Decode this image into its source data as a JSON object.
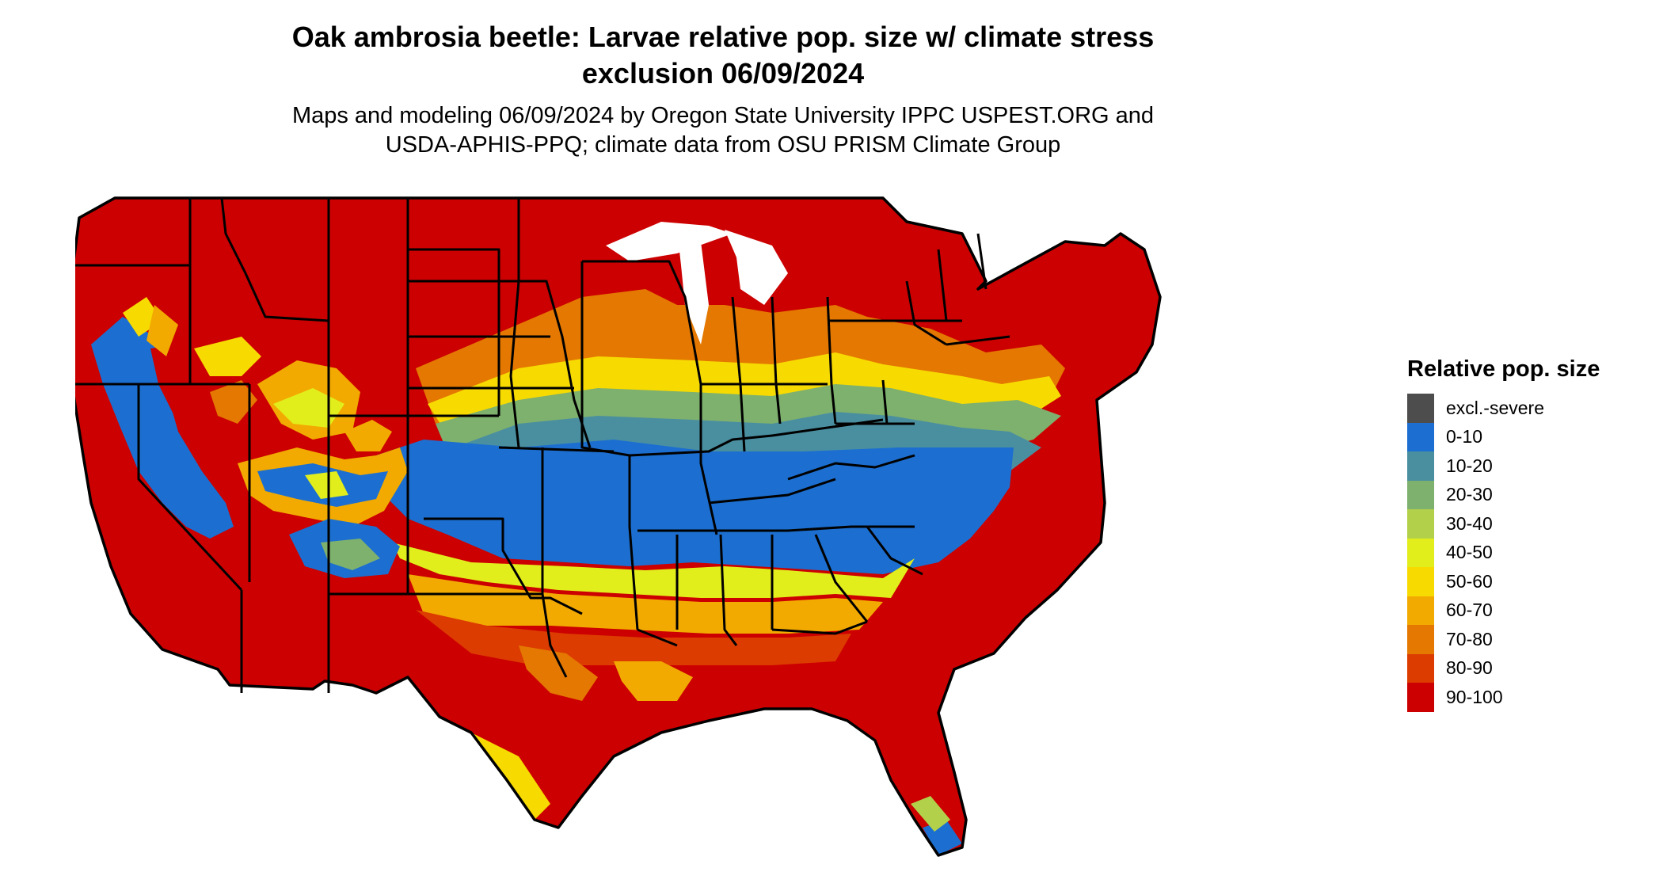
{
  "title_line1": "Oak ambrosia beetle: Larvae relative pop. size w/ climate stress",
  "title_line2": "exclusion 06/09/2024",
  "subtitle_line1": "Maps and modeling 06/09/2024 by Oregon State University IPPC USPEST.ORG and",
  "subtitle_line2": "USDA-APHIS-PPQ; climate data from OSU PRISM Climate Group",
  "legend": {
    "title": "Relative pop. size",
    "items": [
      {
        "label": "excl.-severe",
        "color": "#4d4d4d"
      },
      {
        "label": "0-10",
        "color": "#1c6fd0"
      },
      {
        "label": "10-20",
        "color": "#4a8fa0"
      },
      {
        "label": "20-30",
        "color": "#7eb06e"
      },
      {
        "label": "30-40",
        "color": "#b3d04a"
      },
      {
        "label": "40-50",
        "color": "#e2ee1c"
      },
      {
        "label": "50-60",
        "color": "#f7db00"
      },
      {
        "label": "60-70",
        "color": "#f2aa00"
      },
      {
        "label": "70-80",
        "color": "#e47800"
      },
      {
        "label": "80-90",
        "color": "#dc3c00"
      },
      {
        "label": "90-100",
        "color": "#cc0000"
      }
    ]
  }
}
